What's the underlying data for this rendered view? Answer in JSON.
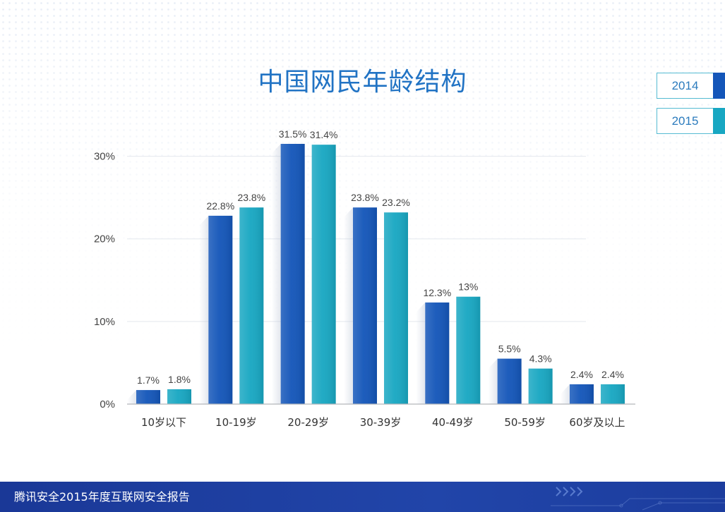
{
  "chart_data": {
    "type": "bar",
    "title": "中国网民年龄结构",
    "categories": [
      "10岁以下",
      "10-19岁",
      "20-29岁",
      "30-39岁",
      "40-49岁",
      "50-59岁",
      "60岁及以上"
    ],
    "series": [
      {
        "name": "2014",
        "color": "#1456b9",
        "values": [
          1.7,
          22.8,
          31.5,
          23.8,
          12.3,
          5.5,
          2.4
        ],
        "labels": [
          "1.7%",
          "22.8%",
          "31.5%",
          "23.8%",
          "12.3%",
          "5.5%",
          "2.4%"
        ]
      },
      {
        "name": "2015",
        "color": "#18a7c2",
        "values": [
          1.8,
          23.8,
          31.4,
          23.2,
          13,
          4.3,
          2.4
        ],
        "labels": [
          "1.8%",
          "23.8%",
          "31.4%",
          "23.2%",
          "13%",
          "4.3%",
          "2.4%"
        ]
      }
    ],
    "yticks": [
      0,
      10,
      20,
      30
    ],
    "ytick_labels": [
      "0%",
      "10%",
      "20%",
      "30%"
    ],
    "ylim": [
      0,
      35
    ],
    "grid": true,
    "legend": "top-right"
  },
  "footer": {
    "text": "腾讯安全2015年度互联网安全报告",
    "decoration_icon": "chevron-arrows-icon"
  },
  "colors": {
    "title": "#2173c4",
    "footer_background": "#1e3fa1",
    "footer_text": "#ffffff",
    "legend_border": "#55bbd2",
    "legend_text": "#2b7bbd"
  }
}
